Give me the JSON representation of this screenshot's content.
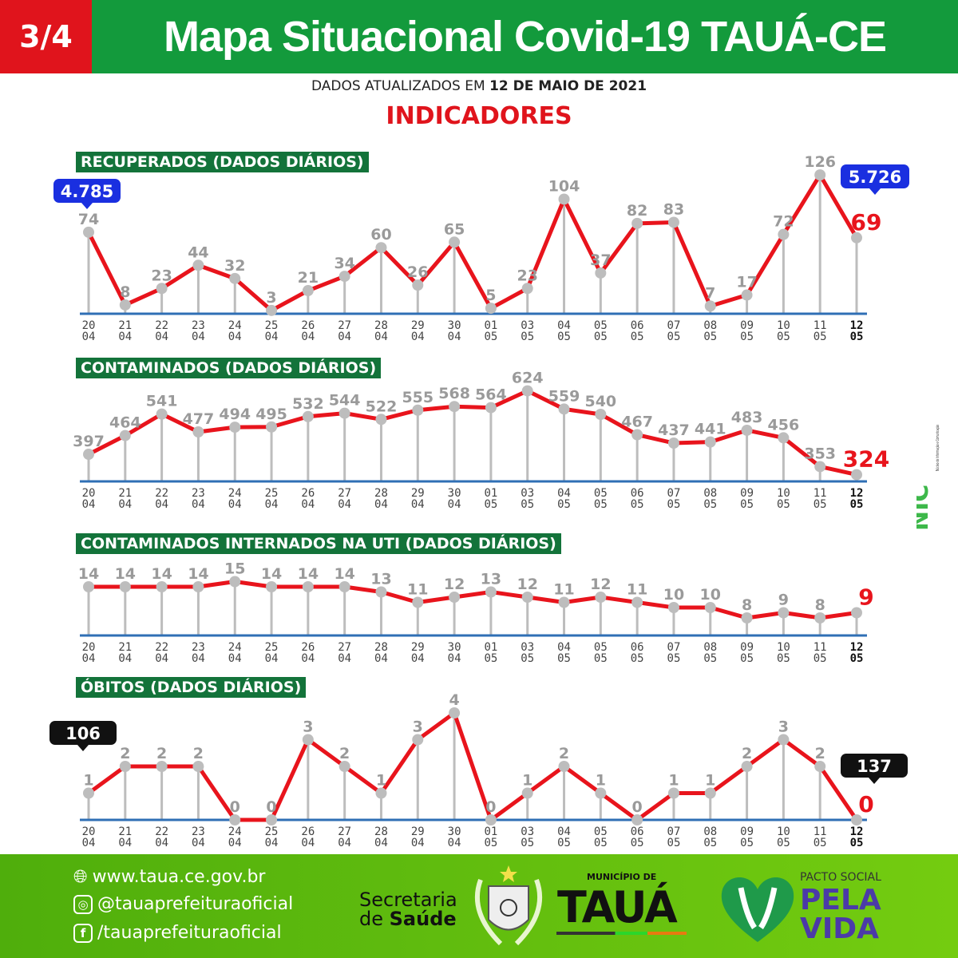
{
  "header": {
    "page_number": "3/4",
    "title": "Mapa Situacional Covid-19 TAUÁ-CE",
    "updated_prefix": "DADOS ATUALIZADOS EM",
    "updated_date": "12 DE MAIO DE 2021",
    "section": "INDICADORES"
  },
  "colors": {
    "line": "#e8141c",
    "stem": "#bdbdbd",
    "point": "#bdbdbd",
    "baseline": "#2f6fb5",
    "value_label": "#9a9a9a",
    "last_value": "#e8141c",
    "title_bg": "#13733a",
    "header_green": "#139a3c",
    "header_red": "#e0141c",
    "callout_blue": "#1a2fe0",
    "callout_black": "#111111"
  },
  "chart_data": [
    {
      "type": "line",
      "title": "RECUPERADOS  (DADOS DIÁRIOS)",
      "categories": [
        "20/04",
        "21/04",
        "22/04",
        "23/04",
        "24/04",
        "25/04",
        "26/04",
        "27/04",
        "28/04",
        "29/04",
        "30/04",
        "01/05",
        "03/05",
        "04/05",
        "05/05",
        "06/05",
        "07/05",
        "08/05",
        "09/05",
        "10/05",
        "11/05",
        "12/05"
      ],
      "values": [
        74,
        8,
        23,
        44,
        32,
        3,
        21,
        34,
        60,
        26,
        65,
        5,
        23,
        104,
        37,
        82,
        83,
        7,
        17,
        72,
        126,
        69
      ],
      "callouts": {
        "start_total": "4.785",
        "end_total": "5.726",
        "color": "#1a2fe0"
      }
    },
    {
      "type": "line",
      "title": "CONTAMINADOS   (DADOS DIÁRIOS)",
      "categories": [
        "20/04",
        "21/04",
        "22/04",
        "23/04",
        "24/04",
        "25/04",
        "26/04",
        "27/04",
        "28/04",
        "29/04",
        "30/04",
        "01/05",
        "03/05",
        "04/05",
        "05/05",
        "06/05",
        "07/05",
        "08/05",
        "09/05",
        "10/05",
        "11/05",
        "12/05"
      ],
      "values": [
        397,
        464,
        541,
        477,
        494,
        495,
        532,
        544,
        522,
        555,
        568,
        564,
        624,
        559,
        540,
        467,
        437,
        441,
        483,
        456,
        353,
        324
      ]
    },
    {
      "type": "line",
      "title": "CONTAMINADOS INTERNADOS NA UTI  (DADOS DIÁRIOS)",
      "categories": [
        "20/04",
        "21/04",
        "22/04",
        "23/04",
        "24/04",
        "25/04",
        "26/04",
        "27/04",
        "28/04",
        "29/04",
        "30/04",
        "01/05",
        "03/05",
        "04/05",
        "05/05",
        "06/05",
        "07/05",
        "08/05",
        "09/05",
        "10/05",
        "11/05",
        "12/05"
      ],
      "values": [
        14,
        14,
        14,
        14,
        15,
        14,
        14,
        14,
        13,
        11,
        12,
        13,
        12,
        11,
        12,
        11,
        10,
        10,
        8,
        9,
        8,
        9
      ]
    },
    {
      "type": "line",
      "title": "ÓBITOS  (DADOS DIÁRIOS)",
      "categories": [
        "20/04",
        "21/04",
        "22/04",
        "23/04",
        "24/04",
        "25/04",
        "26/04",
        "27/04",
        "28/04",
        "29/04",
        "30/04",
        "01/05",
        "03/05",
        "04/05",
        "05/05",
        "06/05",
        "07/05",
        "08/05",
        "09/05",
        "10/05",
        "11/05",
        "12/05"
      ],
      "values": [
        1,
        2,
        2,
        2,
        0,
        0,
        3,
        2,
        1,
        3,
        4,
        0,
        1,
        2,
        1,
        0,
        1,
        1,
        2,
        3,
        2,
        0
      ],
      "callouts": {
        "start_total": "106",
        "end_total": "137",
        "color": "#111111"
      }
    }
  ],
  "side_logo": {
    "text": "NIC",
    "caption": "Núcleo de Informação e Comunicação"
  },
  "footer": {
    "website": "www.taua.ce.gov.br",
    "instagram": "@tauaprefeituraoficial",
    "facebook": "/tauaprefeituraoficial",
    "secretaria_1": "Secretaria",
    "secretaria_2a": "de",
    "secretaria_2b": "Saúde",
    "municipio_small": "MUNICÍPIO DE",
    "municipio": "TAUÁ",
    "pacto_small": "PACTO SOCIAL",
    "pacto_1": "PELA",
    "pacto_2": "VIDA"
  }
}
